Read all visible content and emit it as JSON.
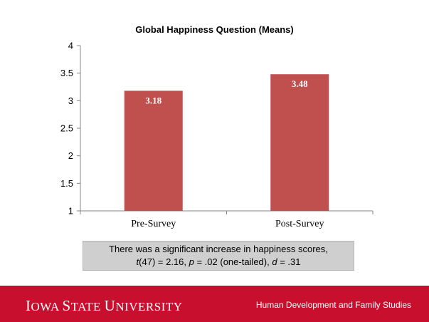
{
  "chart_data": {
    "type": "bar",
    "title": "Global Happiness Question (Means)",
    "categories": [
      "Pre-Survey",
      "Post-Survey"
    ],
    "values": [
      3.18,
      3.48
    ],
    "data_labels": [
      "3.18",
      "3.48"
    ],
    "ylim": [
      1,
      4
    ],
    "yticks": [
      "1",
      "1.5",
      "2",
      "2.5",
      "3",
      "3.5",
      "4"
    ],
    "xlabel": "",
    "ylabel": "",
    "grid": false,
    "legend": "none",
    "bar_color": "#c0504d"
  },
  "note": {
    "line1": "There was a significant increase in happiness scores,",
    "t_symbol": "t",
    "t_stat": "(47) = 2.16, ",
    "p_symbol": "p",
    "p_stat": " = .02 (one-tailed), ",
    "d_symbol": "d",
    "d_stat": " = .31"
  },
  "footer": {
    "logo_I": "I",
    "logo_owa": "OWA ",
    "logo_S": "S",
    "logo_tate": "TATE ",
    "logo_U": "U",
    "logo_niversity": "NIVERSITY",
    "department": "Human Development and Family Studies",
    "bg_color": "#c8102e"
  }
}
